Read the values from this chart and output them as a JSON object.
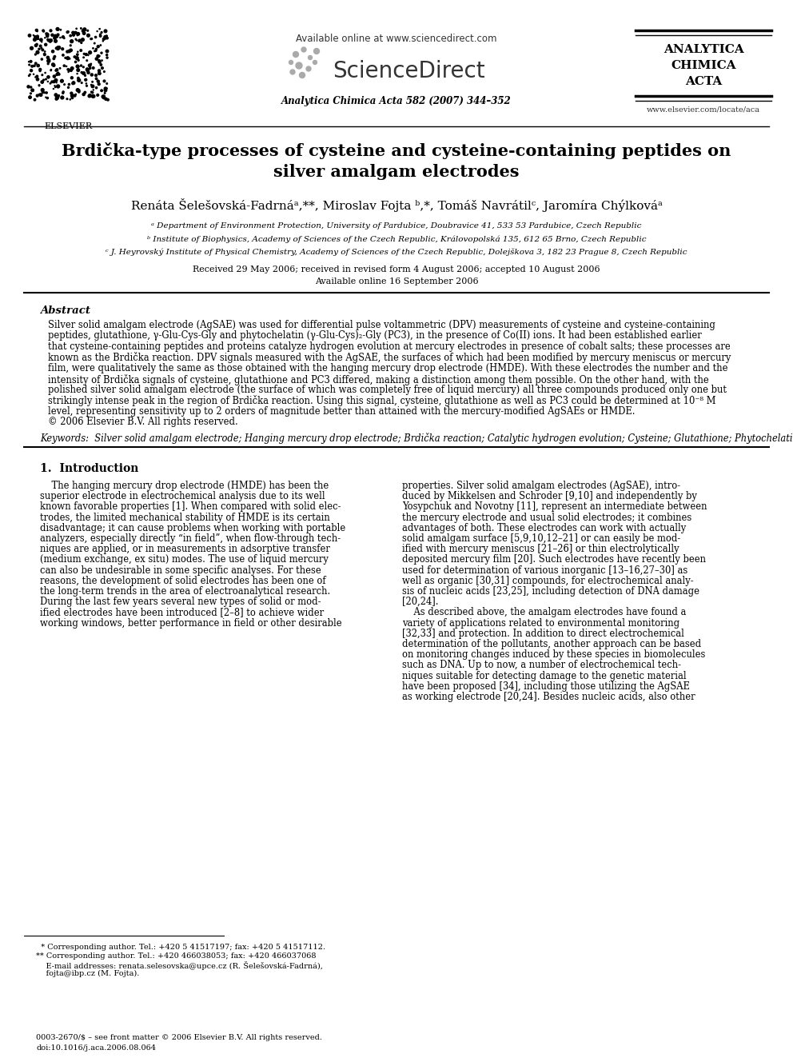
{
  "bg_color": "#ffffff",
  "available_online": "Available online at www.sciencedirect.com",
  "sciencedirect": "ScienceDirect",
  "journal_abbrev": "Analytica Chimica Acta 582 (2007) 344–352",
  "journal_name_lines": [
    "ANALYTICA",
    "CHIMICA",
    "ACTA"
  ],
  "website": "www.elsevier.com/locate/aca",
  "elsevier_text": "ELSEVIER",
  "title_line1": "Brdička-type processes of cysteine and cysteine-containing peptides on",
  "title_line2": "silver amalgam electrodes",
  "authors": "Renáta Šelešovská-Fadrnáᵃ,**, Miroslav Fojta ᵇ,*, Tomáš Navrátilᶜ, Jaromíra Chýlkováᵃ",
  "affil_a": "ᵃ Department of Environment Protection, University of Pardubice, Doubravice 41, 533 53 Pardubice, Czech Republic",
  "affil_b": "ᵇ Institute of Biophysics, Academy of Sciences of the Czech Republic, Královopolská 135, 612 65 Brno, Czech Republic",
  "affil_c": "ᶜ J. Heyrovský Institute of Physical Chemistry, Academy of Sciences of the Czech Republic, Dolejškova 3, 182 23 Prague 8, Czech Republic",
  "received": "Received 29 May 2006; received in revised form 4 August 2006; accepted 10 August 2006",
  "available_online_paper": "Available online 16 September 2006",
  "abstract_title": "Abstract",
  "abstract_text": "Silver solid amalgam electrode (AgSAE) was used for differential pulse voltammetric (DPV) measurements of cysteine and cysteine-containing\npeptides, glutathione, γ-Glu-Cys-Gly and phytochelatin (γ-Glu-Cys)₂-Gly (PC3), in the presence of Co(II) ions. It had been established earlier\nthat cysteine-containing peptides and proteins catalyze hydrogen evolution at mercury electrodes in presence of cobalt salts; these processes are\nknown as the Brdička reaction. DPV signals measured with the AgSAE, the surfaces of which had been modified by mercury meniscus or mercury\nfilm, were qualitatively the same as those obtained with the hanging mercury drop electrode (HMDE). With these electrodes the number and the\nintensity of Brdička signals of cysteine, glutathione and PC3 differed, making a distinction among them possible. On the other hand, with the\npolished silver solid amalgam electrode (the surface of which was completely free of liquid mercury) all three compounds produced only one but\nstrikingly intense peak in the region of Brdička reaction. Using this signal, cysteine, glutathione as well as PC3 could be determined at 10⁻⁸ M\nlevel, representing sensitivity up to 2 orders of magnitude better than attained with the mercury-modified AgSAEs or HMDE.\n© 2006 Elsevier B.V. All rights reserved.",
  "keywords_label": "Keywords:",
  "keywords_text": "Silver solid amalgam electrode; Hanging mercury drop electrode; Brdička reaction; Catalytic hydrogen evolution; Cysteine; Glutathione; Phytochelatin",
  "section1_title": "1.  Introduction",
  "intro_col1_lines": [
    "    The hanging mercury drop electrode (HMDE) has been the",
    "superior electrode in electrochemical analysis due to its well",
    "known favorable properties [1]. When compared with solid elec-",
    "trodes, the limited mechanical stability of HMDE is its certain",
    "disadvantage; it can cause problems when working with portable",
    "analyzers, especially directly “in field”, when flow-through tech-",
    "niques are applied, or in measurements in adsorptive transfer",
    "(medium exchange, ex situ) modes. The use of liquid mercury",
    "can also be undesirable in some specific analyses. For these",
    "reasons, the development of solid electrodes has been one of",
    "the long-term trends in the area of electroanalytical research.",
    "During the last few years several new types of solid or mod-",
    "ified electrodes have been introduced [2–8] to achieve wider",
    "working windows, better performance in field or other desirable"
  ],
  "intro_col2_lines": [
    "properties. Silver solid amalgam electrodes (AgSAE), intro-",
    "duced by Mikkelsen and Schroder [9,10] and independently by",
    "Yosypchuk and Novotny [11], represent an intermediate between",
    "the mercury electrode and usual solid electrodes; it combines",
    "advantages of both. These electrodes can work with actually",
    "solid amalgam surface [5,9,10,12–21] or can easily be mod-",
    "ified with mercury meniscus [21–26] or thin electrolytically",
    "deposited mercury film [20]. Such electrodes have recently been",
    "used for determination of various inorganic [13–16,27–30] as",
    "well as organic [30,31] compounds, for electrochemical analy-",
    "sis of nucleic acids [23,25], including detection of DNA damage",
    "[20,24].",
    "    As described above, the amalgam electrodes have found a",
    "variety of applications related to environmental monitoring",
    "[32,33] and protection. In addition to direct electrochemical",
    "determination of the pollutants, another approach can be based",
    "on monitoring changes induced by these species in biomolecules",
    "such as DNA. Up to now, a number of electrochemical tech-",
    "niques suitable for detecting damage to the genetic material",
    "have been proposed [34], including those utilizing the AgSAE",
    "as working electrode [20,24]. Besides nucleic acids, also other"
  ],
  "footnote1": "  * Corresponding author. Tel.: +420 5 41517197; fax: +420 5 41517112.",
  "footnote2": "** Corresponding author. Tel.: +420 466038053; fax: +420 466037068",
  "footnote3": "    E-mail addresses: renata.selesovska@upce.cz (R. Šelešovská-Fadrná),",
  "footnote4": "    fojta@ibp.cz (M. Fojta).",
  "footer1": "0003-2670/$ – see front matter © 2006 Elsevier B.V. All rights reserved.",
  "footer2": "doi:10.1016/j.aca.2006.08.064"
}
